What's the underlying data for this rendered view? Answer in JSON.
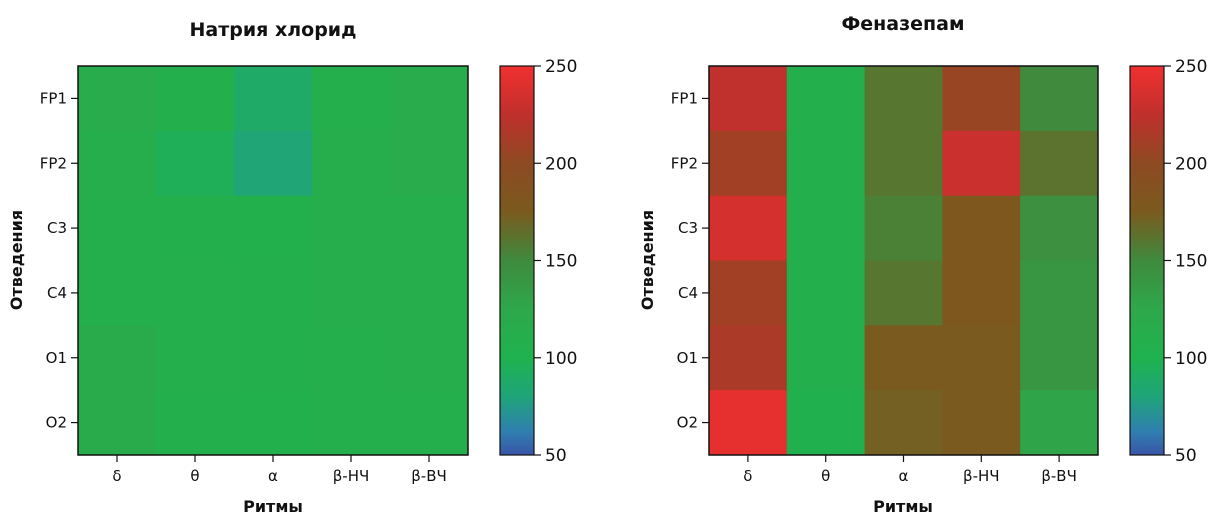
{
  "chart_data": [
    {
      "type": "heatmap",
      "title": "Натрия хлорид",
      "xlabel": "Ритмы",
      "ylabel": "Отведения",
      "x_categories": [
        "δ",
        "θ",
        "α",
        "β-НЧ",
        "β-ВЧ"
      ],
      "y_categories": [
        "FP1",
        "FP2",
        "C3",
        "C4",
        "O1",
        "O2"
      ],
      "values": [
        [
          115,
          108,
          88,
          110,
          115
        ],
        [
          112,
          95,
          82,
          112,
          115
        ],
        [
          110,
          108,
          105,
          112,
          112
        ],
        [
          110,
          110,
          108,
          112,
          112
        ],
        [
          118,
          110,
          108,
          110,
          112
        ],
        [
          118,
          108,
          105,
          110,
          110
        ]
      ],
      "colorbar": {
        "min": 50,
        "max": 250,
        "ticks": [
          50,
          100,
          150,
          200,
          250
        ]
      }
    },
    {
      "type": "heatmap",
      "title": "Феназепам",
      "xlabel": "Ритмы",
      "ylabel": "Отведения",
      "x_categories": [
        "δ",
        "θ",
        "α",
        "β-НЧ",
        "β-ВЧ"
      ],
      "y_categories": [
        "FP1",
        "FP2",
        "C3",
        "C4",
        "O1",
        "O2"
      ],
      "values": [
        [
          225,
          108,
          160,
          205,
          150
        ],
        [
          210,
          108,
          160,
          230,
          162
        ],
        [
          235,
          108,
          155,
          180,
          145
        ],
        [
          210,
          108,
          160,
          180,
          140
        ],
        [
          215,
          108,
          175,
          175,
          140
        ],
        [
          245,
          102,
          172,
          175,
          128
        ]
      ],
      "colorbar": {
        "min": 50,
        "max": 250,
        "ticks": [
          50,
          100,
          150,
          200,
          250
        ]
      }
    }
  ],
  "colorscale": [
    {
      "v": 50,
      "color": "#3a55a8"
    },
    {
      "v": 62,
      "color": "#2f7fb0"
    },
    {
      "v": 80,
      "color": "#1fa47a"
    },
    {
      "v": 100,
      "color": "#1fb24e"
    },
    {
      "v": 125,
      "color": "#2ea84a"
    },
    {
      "v": 150,
      "color": "#3f8a3d"
    },
    {
      "v": 175,
      "color": "#7a5a1e"
    },
    {
      "v": 200,
      "color": "#8e4a22"
    },
    {
      "v": 225,
      "color": "#c0302c"
    },
    {
      "v": 250,
      "color": "#f03030"
    }
  ]
}
